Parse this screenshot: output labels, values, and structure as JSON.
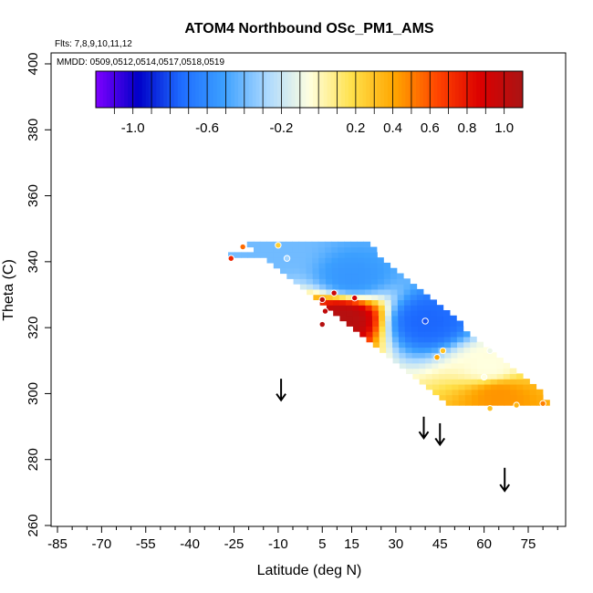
{
  "chart_data": {
    "type": "heatmap",
    "title": "ATOM4 Northbound OSc_PM1_AMS",
    "xlabel": "Latitude (deg N)",
    "ylabel": "Theta (C)",
    "xlim": [
      -90,
      85
    ],
    "ylim": [
      260,
      405
    ],
    "x_ticks": [
      -85,
      -70,
      -55,
      -40,
      -25,
      -10,
      5,
      15,
      30,
      45,
      60,
      75
    ],
    "x_tick_labels": [
      "-85",
      "-70",
      "-55",
      "-40",
      "-25",
      "-10",
      "5",
      "15",
      "30",
      "45",
      "60",
      "75"
    ],
    "x_minor_step": 5,
    "y_ticks": [
      260,
      280,
      300,
      320,
      340,
      360,
      380,
      400
    ],
    "y_tick_labels": [
      "260",
      "280",
      "300",
      "320",
      "340",
      "360",
      "380",
      "400"
    ],
    "flights_note": "Flts: 7,8,9,10,11,12",
    "dates_note": "MMDD: 0509,0512,0514,0517,0518,0519",
    "colorbar": {
      "range": [
        -1.2,
        1.1
      ],
      "tick_values": [
        -1.0,
        -0.6,
        -0.2,
        0.2,
        0.4,
        0.6,
        0.8,
        1.0
      ],
      "tick_labels": [
        "-1.0",
        "-0.6",
        "-0.2",
        "0.2",
        "0.4",
        "0.6",
        "0.8",
        "1.0"
      ],
      "colors": [
        "#7f00ff",
        "#0000c8",
        "#1e6cff",
        "#3ca0ff",
        "#aad8ff",
        "#ffffe0",
        "#ffe14a",
        "#ffa500",
        "#ff4500",
        "#dc0000",
        "#aa1414"
      ]
    },
    "field_region": {
      "top_theta": 345.5,
      "bottom_theta": 296.5,
      "left_edge_lat_at_top": -22,
      "left_edge_lat_at_bottom": 47,
      "right_edge_lat_at_top": 18,
      "right_edge_lat_at_bottom": 82,
      "extra_left_lat_at_341": -27
    },
    "field_features": [
      {
        "kind": "positive_max",
        "lat": 12,
        "theta": 323,
        "value": 1.05
      },
      {
        "kind": "negative_band",
        "lat": 40,
        "theta": 322,
        "value": -0.75
      },
      {
        "kind": "negative_band",
        "lat": 15,
        "theta": 335,
        "value": -0.55
      },
      {
        "kind": "negative_band",
        "lat": -12,
        "theta": 343,
        "value": -0.4
      },
      {
        "kind": "positive_edge",
        "lat": 65,
        "theta": 300,
        "value": 0.45
      },
      {
        "kind": "near_zero",
        "lat": 62,
        "theta": 308,
        "value": -0.05
      }
    ],
    "obs_points": [
      {
        "lat": -22,
        "theta": 344.5,
        "value": 0.55
      },
      {
        "lat": -26,
        "theta": 341,
        "value": 0.75
      },
      {
        "lat": -10,
        "theta": 345,
        "value": 0.25
      },
      {
        "lat": -7,
        "theta": 341,
        "value": -0.3
      },
      {
        "lat": 5,
        "theta": 328.5,
        "value": 1.0
      },
      {
        "lat": 6,
        "theta": 325,
        "value": 1.0
      },
      {
        "lat": 9,
        "theta": 330.5,
        "value": 0.95
      },
      {
        "lat": 16,
        "theta": 329,
        "value": 0.9
      },
      {
        "lat": 5,
        "theta": 321,
        "value": 1.05
      },
      {
        "lat": 40,
        "theta": 322,
        "value": -0.8
      },
      {
        "lat": 46,
        "theta": 313,
        "value": 0.3
      },
      {
        "lat": 44,
        "theta": 311,
        "value": 0.4
      },
      {
        "lat": 62,
        "theta": 313,
        "value": -0.1
      },
      {
        "lat": 60,
        "theta": 305,
        "value": -0.05
      },
      {
        "lat": 62,
        "theta": 295.5,
        "value": 0.3
      },
      {
        "lat": 71,
        "theta": 296.5,
        "value": 0.35
      },
      {
        "lat": 80,
        "theta": 297,
        "value": 0.5
      }
    ],
    "arrows": [
      {
        "lat": -9,
        "theta_top": 304.5,
        "theta_bottom": 298
      },
      {
        "lat": 39.5,
        "theta_top": 293,
        "theta_bottom": 286.5
      },
      {
        "lat": 45,
        "theta_top": 291,
        "theta_bottom": 284.5
      },
      {
        "lat": 67,
        "theta_top": 277.5,
        "theta_bottom": 270.5
      }
    ]
  }
}
